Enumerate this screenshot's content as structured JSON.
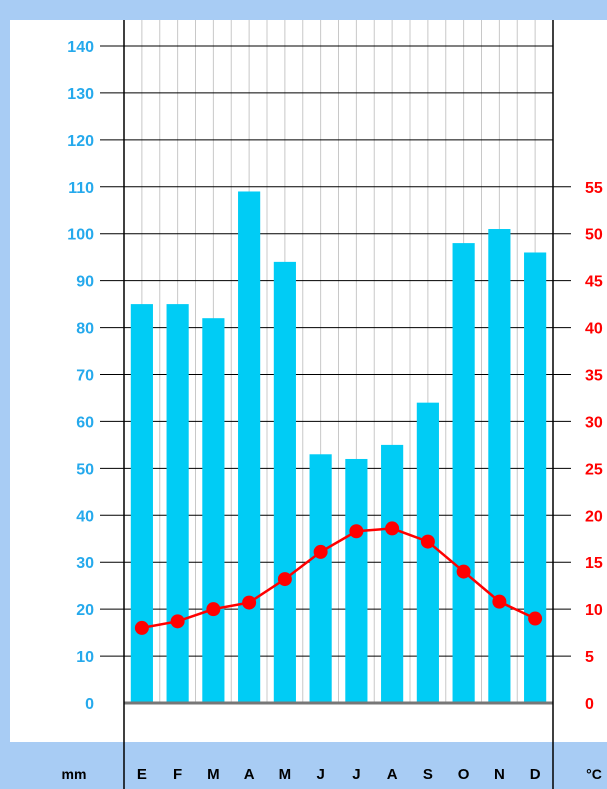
{
  "colors": {
    "frame": "#a8ccf4",
    "bar": "#00ccf5",
    "temperature": "#ff0000",
    "precip_axis_text": "#25a9ec",
    "grid": "#000000",
    "minor_grid": "#c8c8c8",
    "baseline": "#777777"
  },
  "chart_data": {
    "type": "bar",
    "categories": [
      "E",
      "F",
      "M",
      "A",
      "M",
      "J",
      "J",
      "A",
      "S",
      "O",
      "N",
      "D"
    ],
    "series": [
      {
        "type": "bar",
        "axis": "left",
        "values": [
          85,
          85,
          82,
          109,
          94,
          53,
          52,
          55,
          64,
          98,
          101,
          96
        ]
      },
      {
        "type": "line",
        "axis": "right",
        "values": [
          8,
          8.7,
          10,
          10.7,
          13.2,
          16.1,
          18.3,
          18.6,
          17.2,
          14,
          10.8,
          9
        ]
      }
    ],
    "y_left": {
      "label": "mm",
      "ticks": [
        "0",
        "10",
        "20",
        "30",
        "40",
        "50",
        "60",
        "70",
        "80",
        "90",
        "100",
        "110",
        "120",
        "130",
        "140"
      ],
      "ylim": [
        0,
        140
      ]
    },
    "y_right": {
      "label": "°C",
      "ticks": [
        "0",
        "5",
        "10",
        "15",
        "20",
        "25",
        "30",
        "35",
        "40",
        "45",
        "50",
        "55"
      ],
      "ylim": [
        0,
        70
      ]
    },
    "grid": true
  }
}
